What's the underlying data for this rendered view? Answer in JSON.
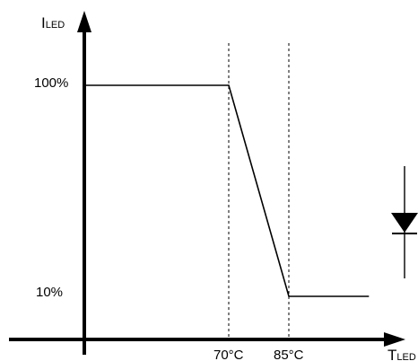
{
  "chart_data": {
    "type": "line",
    "axes": {
      "y_label_main": "I",
      "y_label_sub": "LED",
      "x_label_main": "T",
      "x_label_sub": "LED"
    },
    "x_ticks": [
      "70°C",
      "85°C"
    ],
    "y_ticks": [
      "100%",
      "10%"
    ],
    "series": [
      {
        "x": [
          0,
          70,
          85,
          105
        ],
        "y": [
          100,
          100,
          10,
          10
        ]
      }
    ],
    "reference_lines_x": [
      70,
      85
    ],
    "grid": false,
    "legend": "none",
    "symbol": "diode-icon"
  },
  "colors": {
    "line": "#000000",
    "axis": "#000000",
    "background": "#ffffff"
  }
}
